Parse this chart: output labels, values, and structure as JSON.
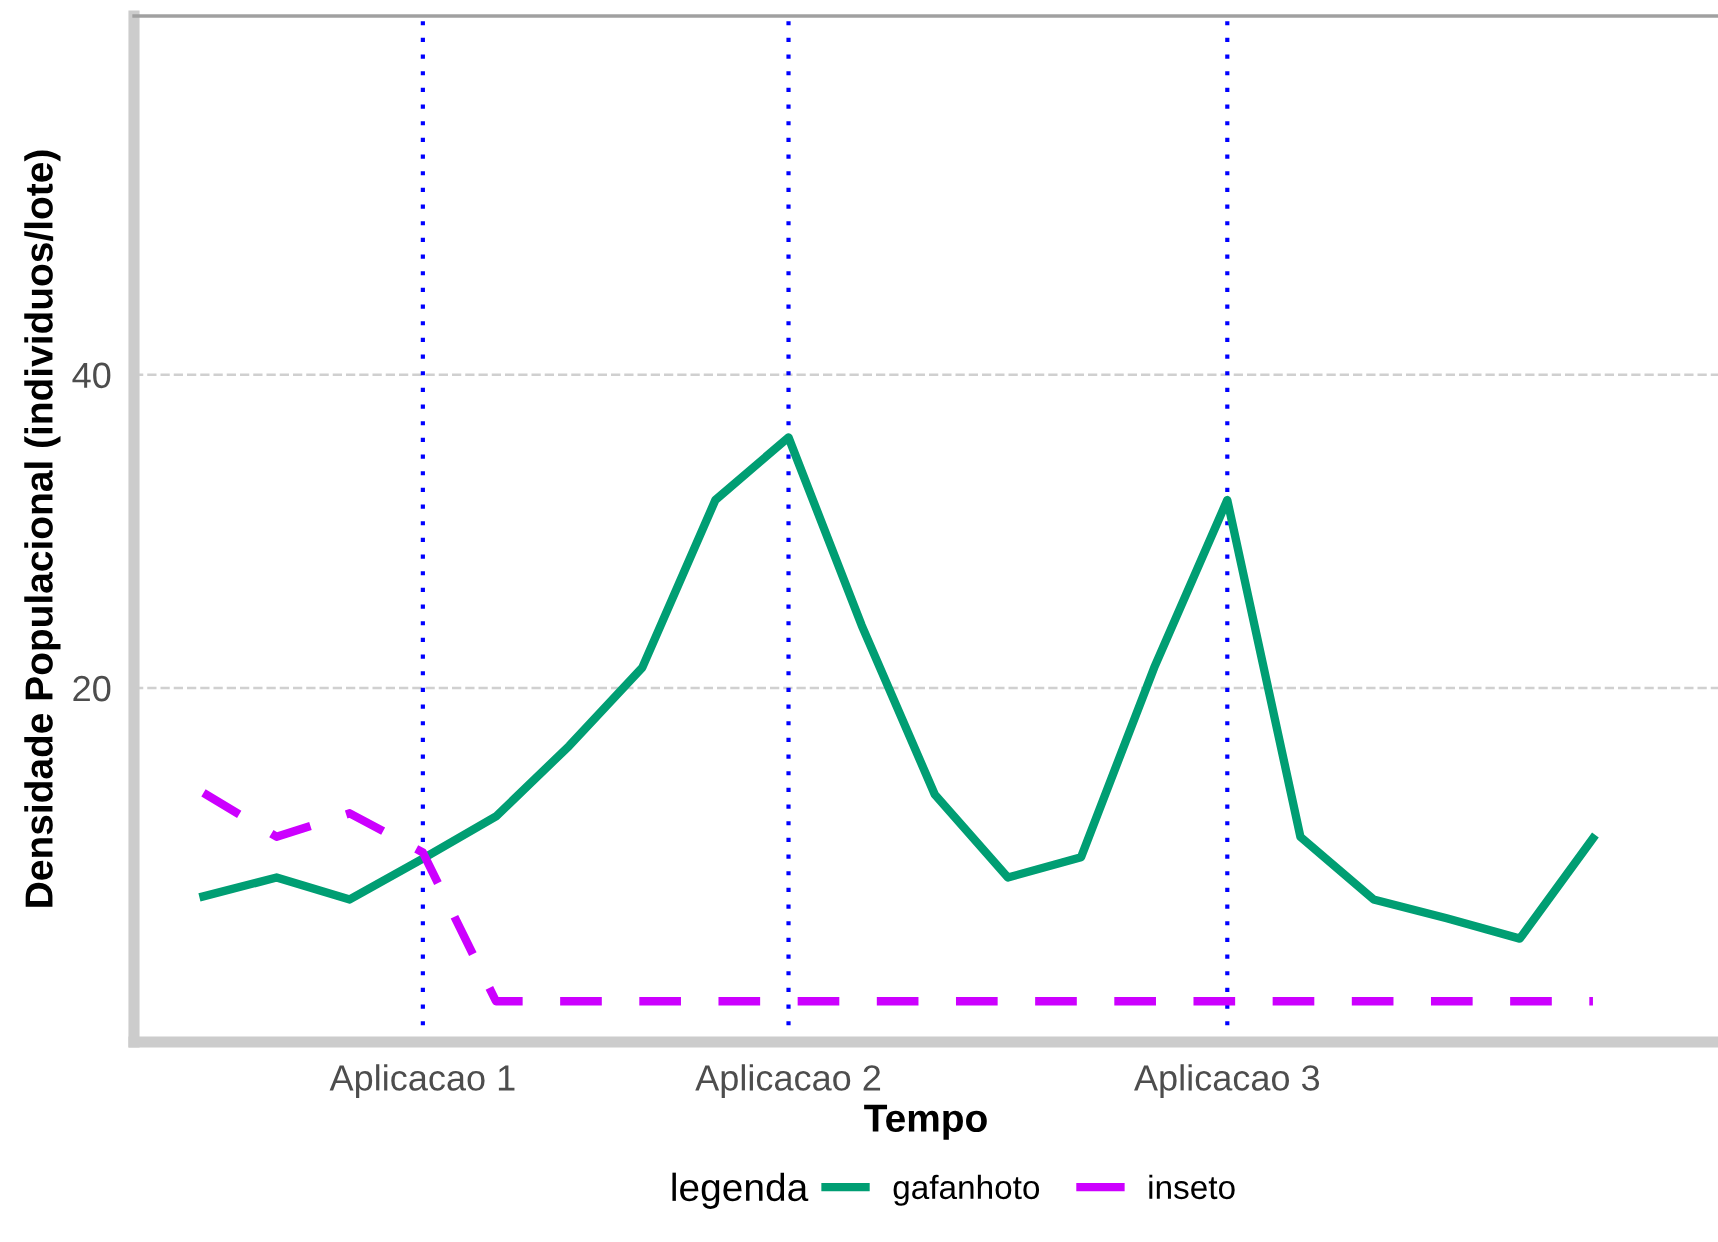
{
  "chart_data": {
    "type": "line",
    "xlabel": "Tempo",
    "ylabel": "Densidade Populacional (individuos/lote)",
    "legend_title": "legenda",
    "legend": "bottom",
    "grid": "y",
    "categories": [
      null,
      null,
      null,
      "Aplicacao 1",
      null,
      null,
      null,
      null,
      "Aplicacao 2",
      null,
      null,
      null,
      null,
      null,
      "Aplicacao 3",
      null,
      null,
      null,
      null,
      null
    ],
    "series": [
      {
        "name": "gafanhoto",
        "color": "#009e73",
        "line_style": "solid",
        "values": [
          6.7,
          7.9,
          6.5,
          9.1,
          11.8,
          16.3,
          21.3,
          32,
          36,
          24,
          13.2,
          7.9,
          9.2,
          21.3,
          32,
          10.5,
          6.5,
          5.3,
          4.0,
          10.4
        ]
      },
      {
        "name": "inseto",
        "color": "#cc00ff",
        "line_style": "dashed",
        "values": [
          13.3,
          10.5,
          12.0,
          9.5,
          0,
          0,
          0,
          0,
          0,
          0,
          0,
          0,
          0,
          0,
          0,
          0,
          0,
          0,
          0,
          0
        ]
      }
    ],
    "ylim": [
      -2.6,
      62.9
    ],
    "yticks": [
      20,
      40
    ],
    "ref_lines": [
      {
        "axis": "x",
        "value": "Aplicacao 1",
        "color": "#0000ff",
        "line_style": "dotted"
      },
      {
        "axis": "x",
        "value": "Aplicacao 2",
        "color": "#0000ff",
        "line_style": "dotted"
      },
      {
        "axis": "x",
        "value": "Aplicacao 3",
        "color": "#0000ff",
        "line_style": "dotted"
      }
    ]
  }
}
